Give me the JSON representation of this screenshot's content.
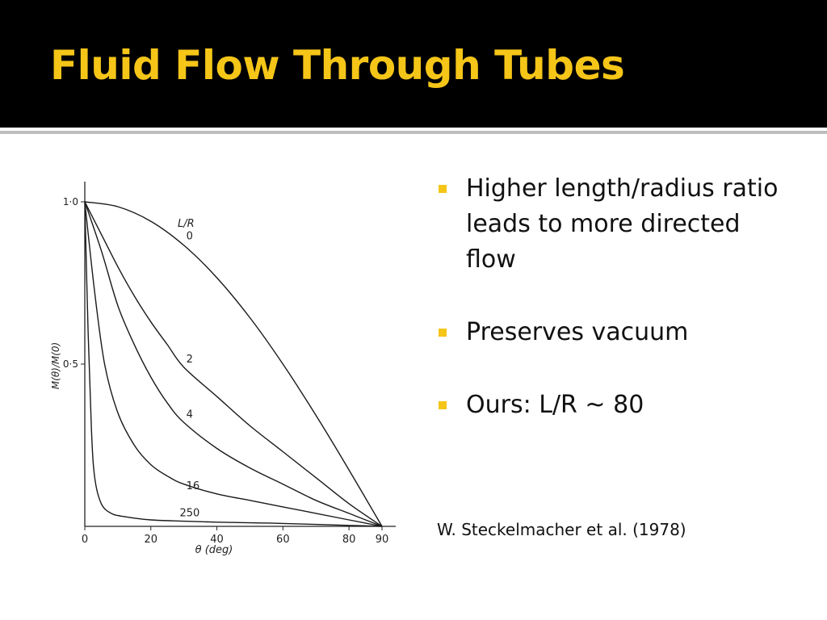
{
  "header": {
    "title": "Fluid Flow Through Tubes"
  },
  "bullets": [
    {
      "text": "Higher length/radius ratio leads to more directed flow"
    },
    {
      "text": "Preserves vacuum"
    },
    {
      "text": "Ours: L/R ~ 80"
    }
  ],
  "citation": "W. Steckelmacher et al. (1978)",
  "colors": {
    "title": "#f5c518",
    "bullet": "#f5c518",
    "background": "#ffffff",
    "header_bg": "#000000"
  },
  "chart_data": {
    "type": "line",
    "xlabel": "θ (deg)",
    "ylabel": "M(θ)/M(0)",
    "xlim": [
      0,
      90
    ],
    "ylim": [
      0,
      1.0
    ],
    "x_ticks": [
      "0",
      "20",
      "40",
      "60",
      "80",
      "90"
    ],
    "y_ticks": [
      "0·5",
      "1·0"
    ],
    "legend_title": "L/R",
    "grid": false,
    "series": [
      {
        "name": "0",
        "x": [
          0,
          10,
          20,
          30,
          40,
          50,
          60,
          70,
          80,
          90
        ],
        "y": [
          1.0,
          0.985,
          0.94,
          0.866,
          0.766,
          0.643,
          0.5,
          0.342,
          0.174,
          0.0
        ]
      },
      {
        "name": "2",
        "x": [
          0,
          5,
          10,
          15,
          20,
          25,
          30,
          40,
          50,
          60,
          70,
          80,
          90
        ],
        "y": [
          1.0,
          0.9,
          0.8,
          0.71,
          0.63,
          0.56,
          0.49,
          0.4,
          0.31,
          0.23,
          0.15,
          0.07,
          0.0
        ]
      },
      {
        "name": "4",
        "x": [
          0,
          5,
          10,
          15,
          20,
          25,
          30,
          40,
          50,
          60,
          70,
          80,
          90
        ],
        "y": [
          1.0,
          0.85,
          0.68,
          0.56,
          0.46,
          0.38,
          0.32,
          0.24,
          0.18,
          0.13,
          0.08,
          0.04,
          0.0
        ]
      },
      {
        "name": "16",
        "x": [
          0,
          3,
          6,
          10,
          15,
          20,
          25,
          30,
          40,
          50,
          60,
          70,
          80,
          90
        ],
        "y": [
          1.0,
          0.72,
          0.5,
          0.35,
          0.25,
          0.19,
          0.155,
          0.13,
          0.1,
          0.08,
          0.06,
          0.04,
          0.02,
          0.0
        ]
      },
      {
        "name": "250",
        "x": [
          0,
          1,
          2,
          3,
          5,
          8,
          12,
          20,
          30,
          40,
          50,
          60,
          70,
          80,
          90
        ],
        "y": [
          1.0,
          0.6,
          0.3,
          0.15,
          0.07,
          0.04,
          0.03,
          0.02,
          0.016,
          0.013,
          0.011,
          0.009,
          0.006,
          0.003,
          0.0
        ]
      }
    ]
  }
}
